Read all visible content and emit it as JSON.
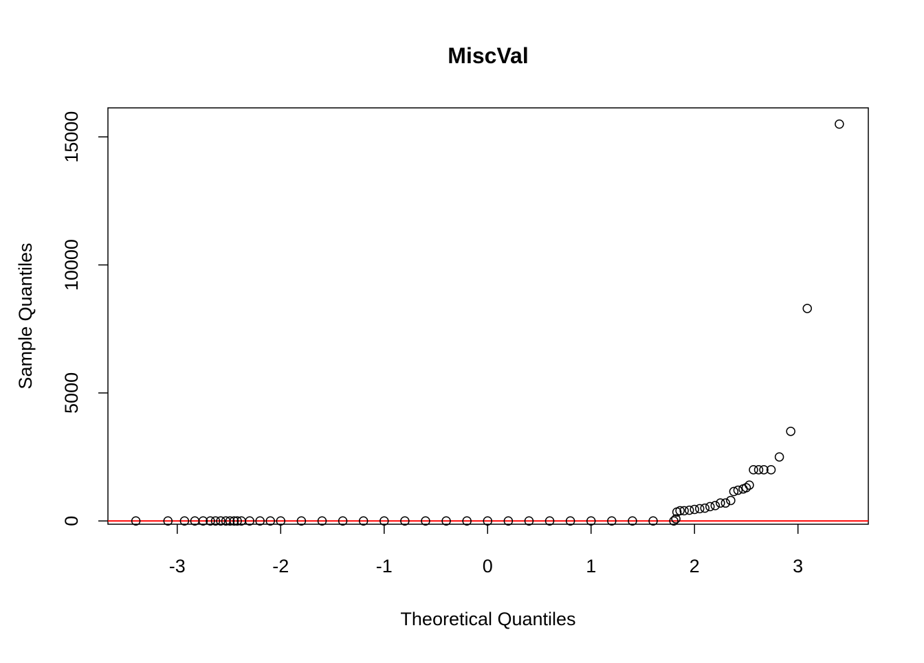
{
  "chart_data": {
    "type": "scatter",
    "title": "MiscVal",
    "x_label": "Theoretical Quantiles",
    "y_label": "Sample Quantiles",
    "x": [
      -3.4,
      -3.09,
      -2.93,
      -2.83,
      -2.75,
      -2.68,
      -2.63,
      -2.58,
      -2.53,
      -2.49,
      -2.45,
      -2.42,
      -2.38,
      -2.3,
      -2.2,
      -2.1,
      -2.0,
      -1.8,
      -1.6,
      -1.4,
      -1.2,
      -1.0,
      -0.8,
      -0.6,
      -0.4,
      -0.2,
      0,
      0.2,
      0.4,
      0.6,
      0.8,
      1.0,
      1.2,
      1.4,
      1.6,
      1.8,
      1.82,
      1.83,
      1.86,
      1.9,
      1.95,
      2.0,
      2.05,
      2.1,
      2.15,
      2.2,
      2.25,
      2.3,
      2.35,
      2.38,
      2.42,
      2.47,
      2.5,
      2.53,
      2.57,
      2.62,
      2.67,
      2.74,
      2.82,
      2.93,
      3.09,
      3.4
    ],
    "values": [
      0,
      0,
      0,
      0,
      0,
      0,
      0,
      0,
      0,
      0,
      0,
      0,
      0,
      0,
      0,
      0,
      0,
      0,
      0,
      0,
      0,
      0,
      0,
      0,
      0,
      0,
      0,
      0,
      0,
      0,
      0,
      0,
      0,
      0,
      0,
      0,
      80,
      350,
      400,
      400,
      420,
      450,
      480,
      500,
      560,
      600,
      700,
      700,
      800,
      1150,
      1200,
      1250,
      1300,
      1400,
      2000,
      2000,
      2000,
      2000,
      2500,
      3500,
      8300,
      15500
    ],
    "color": "#000000",
    "reference_line": {
      "intercept": 0,
      "slope": 0,
      "color": "#ff0000"
    },
    "xlim": [
      -3.67,
      3.68
    ],
    "ylim": [
      -127,
      16134
    ],
    "xticks": [
      -3,
      -2,
      -1,
      0,
      1,
      2,
      3
    ],
    "yticks": [
      0,
      5000,
      10000,
      15000
    ]
  }
}
